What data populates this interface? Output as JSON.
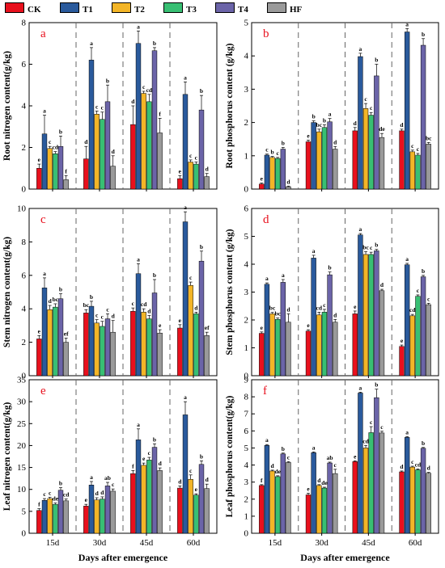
{
  "legend": [
    {
      "name": "CK",
      "color": "#e8101d"
    },
    {
      "name": "T1",
      "color": "#2a5a9c"
    },
    {
      "name": "T2",
      "color": "#f3b527"
    },
    {
      "name": "T3",
      "color": "#38bf73"
    },
    {
      "name": "T4",
      "color": "#6b64a8"
    },
    {
      "name": "HF",
      "color": "#9a9a9a"
    }
  ],
  "xlabel": "Days after emergence",
  "chart_data": [
    {
      "type": "bar",
      "panel": "a",
      "ylabel": "Root nitrogen content(g/kg)",
      "ylim": [
        0,
        8
      ],
      "yticks": [
        0,
        2,
        4,
        6,
        8
      ],
      "categories": [
        "15d",
        "30d",
        "45d",
        "60d"
      ],
      "series": [
        {
          "name": "CK",
          "values": [
            1.0,
            1.45,
            3.1,
            0.5
          ],
          "err": [
            0.2,
            0.6,
            0.9,
            0.15
          ],
          "letters": [
            "e",
            "d",
            "d",
            "e"
          ]
        },
        {
          "name": "T1",
          "values": [
            2.65,
            6.2,
            7.0,
            4.55
          ],
          "err": [
            0.9,
            0.6,
            0.6,
            0.6
          ],
          "letters": [
            "a",
            "a",
            "a",
            "a"
          ]
        },
        {
          "name": "T2",
          "values": [
            1.95,
            3.6,
            4.6,
            1.3
          ],
          "err": [
            0.1,
            0.15,
            0.1,
            0.1
          ],
          "letters": [
            "c",
            "c",
            "c",
            "c"
          ]
        },
        {
          "name": "T3",
          "values": [
            1.7,
            3.35,
            4.2,
            1.2
          ],
          "err": [
            0.1,
            0.35,
            0.35,
            0.1
          ],
          "letters": [
            "cd",
            "c",
            "cd",
            "c"
          ]
        },
        {
          "name": "T4",
          "values": [
            2.05,
            4.2,
            6.65,
            3.8
          ],
          "err": [
            0.5,
            0.8,
            0.15,
            0.7
          ],
          "letters": [
            "b",
            "b",
            "b",
            "b"
          ]
        },
        {
          "name": "HF",
          "values": [
            0.45,
            1.1,
            2.7,
            0.6
          ],
          "err": [
            0.2,
            0.5,
            0.7,
            0.15
          ],
          "letters": [
            "f",
            "d",
            "f",
            "d"
          ]
        }
      ]
    },
    {
      "type": "bar",
      "panel": "b",
      "ylabel": "Root phosphorus content (g/kg)",
      "ylim": [
        0,
        5
      ],
      "yticks": [
        0,
        1,
        2,
        3,
        4,
        5
      ],
      "categories": [
        "15d",
        "30d",
        "45d",
        "60d"
      ],
      "series": [
        {
          "name": "CK",
          "values": [
            0.15,
            1.42,
            1.75,
            1.75
          ],
          "err": [
            0.03,
            0.05,
            0.1,
            0.05
          ],
          "letters": [
            "e",
            "e",
            "d",
            "d"
          ]
        },
        {
          "name": "T1",
          "values": [
            1.02,
            2.0,
            3.98,
            4.72
          ],
          "err": [
            0.03,
            0.05,
            0.1,
            0.1
          ],
          "letters": [
            "c",
            "b",
            "a",
            "a"
          ]
        },
        {
          "name": "T2",
          "values": [
            0.95,
            1.72,
            2.42,
            1.12
          ],
          "err": [
            0.03,
            0.08,
            0.15,
            0.05
          ],
          "letters": [
            "b",
            "bc",
            "c",
            "c"
          ]
        },
        {
          "name": "T3",
          "values": [
            0.92,
            1.85,
            2.22,
            1.02
          ],
          "err": [
            0.03,
            0.08,
            0.08,
            0.05
          ],
          "letters": [
            "c",
            "b",
            "c",
            "c"
          ]
        },
        {
          "name": "T4",
          "values": [
            1.2,
            2.02,
            3.4,
            4.32
          ],
          "err": [
            0.05,
            0.1,
            0.35,
            0.2
          ],
          "letters": [
            "b",
            "a",
            "b",
            "b"
          ]
        },
        {
          "name": "HF",
          "values": [
            0.07,
            1.2,
            1.55,
            1.35
          ],
          "err": [
            0.02,
            0.08,
            0.12,
            0.05
          ],
          "letters": [
            "d",
            "d",
            "de",
            "bc"
          ]
        }
      ]
    },
    {
      "type": "bar",
      "panel": "c",
      "ylabel": "Stem nitrogen content(g/kg)",
      "ylim": [
        0,
        10
      ],
      "yticks": [
        0,
        2,
        4,
        6,
        8,
        10
      ],
      "categories": [
        "15d",
        "30d",
        "45d",
        "60d"
      ],
      "series": [
        {
          "name": "CK",
          "values": [
            2.2,
            3.75,
            3.85,
            2.85
          ],
          "err": [
            0.2,
            0.2,
            0.2,
            0.2
          ],
          "letters": [
            "e",
            "bc",
            "c",
            "e"
          ]
        },
        {
          "name": "T1",
          "values": [
            5.25,
            4.15,
            6.1,
            9.2
          ],
          "err": [
            0.6,
            0.3,
            0.6,
            0.6
          ],
          "letters": [
            "a",
            "b",
            "a",
            "a"
          ]
        },
        {
          "name": "T2",
          "values": [
            3.95,
            3.15,
            3.8,
            5.4
          ],
          "err": [
            0.25,
            0.2,
            0.2,
            0.2
          ],
          "letters": [
            "d",
            "c",
            "cd",
            "c"
          ]
        },
        {
          "name": "T3",
          "values": [
            4.1,
            2.95,
            3.4,
            3.7
          ],
          "err": [
            0.2,
            0.3,
            0.2,
            0.1
          ],
          "letters": [
            "bc",
            "c",
            "d",
            "d"
          ]
        },
        {
          "name": "T4",
          "values": [
            4.6,
            3.4,
            4.95,
            6.85
          ],
          "err": [
            0.3,
            0.3,
            0.8,
            0.6
          ],
          "letters": [
            "b",
            "c",
            "b",
            "b"
          ]
        },
        {
          "name": "HF",
          "values": [
            2.0,
            2.6,
            2.55,
            2.4
          ],
          "err": [
            0.25,
            0.7,
            0.2,
            0.2
          ],
          "letters": [
            "ef",
            "d",
            "e",
            "ef"
          ]
        }
      ]
    },
    {
      "type": "bar",
      "panel": "d",
      "ylabel": "Stem phosphorus content (g/kg)",
      "ylim": [
        0,
        6
      ],
      "yticks": [
        0,
        1,
        2,
        3,
        4,
        5,
        6
      ],
      "categories": [
        "15d",
        "30d",
        "45d",
        "60d"
      ],
      "series": [
        {
          "name": "CK",
          "values": [
            1.52,
            1.6,
            2.22,
            1.05
          ],
          "err": [
            0.05,
            0.05,
            0.1,
            0.05
          ],
          "letters": [
            "e",
            "e",
            "e",
            "e"
          ]
        },
        {
          "name": "T1",
          "values": [
            3.28,
            4.22,
            5.05,
            3.98
          ],
          "err": [
            0.05,
            0.1,
            0.05,
            0.05
          ],
          "letters": [
            "a",
            "a",
            "a",
            "a"
          ]
        },
        {
          "name": "T2",
          "values": [
            2.22,
            2.18,
            4.35,
            2.15
          ],
          "err": [
            0.05,
            0.1,
            0.1,
            0.05
          ],
          "letters": [
            "bc",
            "cd",
            "bc",
            "cd"
          ]
        },
        {
          "name": "T3",
          "values": [
            2.02,
            2.28,
            4.35,
            2.85
          ],
          "err": [
            0.05,
            0.1,
            0.08,
            0.05
          ],
          "letters": [
            "bc",
            "c",
            "c",
            "c"
          ]
        },
        {
          "name": "T4",
          "values": [
            3.35,
            3.62,
            4.48,
            3.55
          ],
          "err": [
            0.1,
            0.1,
            0.05,
            0.05
          ],
          "letters": [
            "a",
            "b",
            "b",
            "b"
          ]
        },
        {
          "name": "HF",
          "values": [
            1.92,
            1.92,
            3.05,
            2.55
          ],
          "err": [
            0.3,
            0.1,
            0.05,
            0.05
          ],
          "letters": [
            "d",
            "d",
            "d",
            "c"
          ]
        }
      ]
    },
    {
      "type": "bar",
      "panel": "e",
      "ylabel": "Leaf nitrogen content(g/kg)",
      "ylim": [
        0,
        35
      ],
      "yticks": [
        0,
        5,
        10,
        15,
        20,
        25,
        30,
        35
      ],
      "categories": [
        "15d",
        "30d",
        "45d",
        "60d"
      ],
      "series": [
        {
          "name": "CK",
          "values": [
            5.2,
            6.2,
            13.6,
            10.3
          ],
          "err": [
            0.4,
            0.4,
            0.7,
            0.5
          ],
          "letters": [
            "f",
            "e",
            "f",
            "d"
          ]
        },
        {
          "name": "T1",
          "values": [
            7.5,
            11.0,
            21.3,
            27.0
          ],
          "err": [
            0.4,
            0.8,
            2.5,
            3.0
          ],
          "letters": [
            "c",
            "a",
            "a",
            "a"
          ]
        },
        {
          "name": "T2",
          "values": [
            7.9,
            7.6,
            15.5,
            12.3
          ],
          "err": [
            0.3,
            0.5,
            0.5,
            1.0
          ],
          "letters": [
            "c",
            "d",
            "e",
            "c"
          ]
        },
        {
          "name": "T3",
          "values": [
            6.6,
            7.8,
            16.7,
            8.7
          ],
          "err": [
            0.3,
            0.5,
            0.6,
            0.3
          ],
          "letters": [
            "de",
            "d",
            "c",
            "e"
          ]
        },
        {
          "name": "T4",
          "values": [
            9.8,
            10.8,
            19.6,
            15.7
          ],
          "err": [
            0.6,
            0.8,
            0.8,
            0.8
          ],
          "letters": [
            "b",
            "ab",
            "b",
            "b"
          ]
        },
        {
          "name": "HF",
          "values": [
            7.4,
            9.6,
            14.3,
            10.2
          ],
          "err": [
            0.4,
            0.5,
            0.6,
            1.0
          ],
          "letters": [
            "cd",
            "c",
            "d",
            "d"
          ]
        }
      ]
    },
    {
      "type": "bar",
      "panel": "f",
      "ylabel": "Leaf phosphorus content(g/kg)",
      "ylim": [
        0,
        9
      ],
      "yticks": [
        0,
        1,
        2,
        3,
        4,
        5,
        6,
        7,
        8,
        9
      ],
      "categories": [
        "15d",
        "30d",
        "45d",
        "60d"
      ],
      "series": [
        {
          "name": "CK",
          "values": [
            2.8,
            2.25,
            4.2,
            3.6
          ],
          "err": [
            0.05,
            0.1,
            0.05,
            0.05
          ],
          "letters": [
            "f",
            "e",
            "e",
            "d"
          ]
        },
        {
          "name": "T1",
          "values": [
            5.15,
            4.72,
            8.22,
            5.62
          ],
          "err": [
            0.05,
            0.05,
            0.05,
            0.05
          ],
          "letters": [
            "a",
            "a",
            "a",
            "a"
          ]
        },
        {
          "name": "T2",
          "values": [
            3.65,
            2.8,
            5.0,
            3.88
          ],
          "err": [
            0.05,
            0.05,
            0.15,
            0.05
          ],
          "letters": [
            "d",
            "d",
            "cd",
            "c"
          ]
        },
        {
          "name": "T3",
          "values": [
            3.32,
            2.65,
            5.9,
            3.72
          ],
          "err": [
            0.05,
            0.05,
            0.35,
            0.05
          ],
          "letters": [
            "de",
            "de",
            "c",
            "cd"
          ]
        },
        {
          "name": "T4",
          "values": [
            4.65,
            4.12,
            7.95,
            4.98
          ],
          "err": [
            0.05,
            0.05,
            0.5,
            0.05
          ],
          "letters": [
            "b",
            "ab",
            "b",
            "b"
          ]
        },
        {
          "name": "HF",
          "values": [
            4.15,
            3.5,
            5.88,
            3.52
          ],
          "err": [
            0.05,
            0.25,
            0.1,
            0.05
          ],
          "letters": [
            "c",
            "c",
            "c",
            "d"
          ]
        }
      ]
    }
  ]
}
